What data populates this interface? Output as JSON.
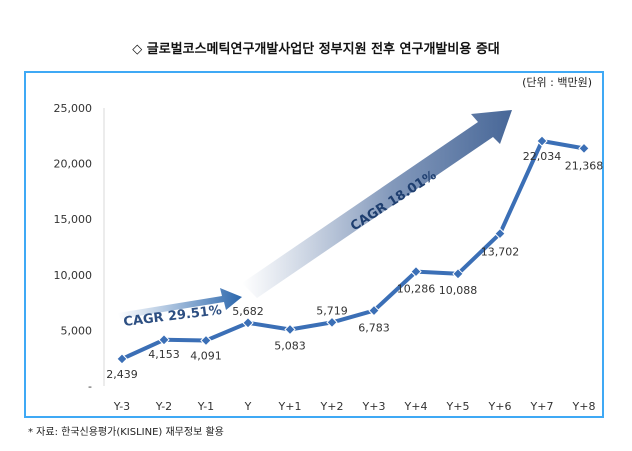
{
  "title": "◇ 글로벌코스메틱연구개발사업단 정부지원 전후 연구개발비용 증대",
  "source": "* 자료: 한국신용평가(KISLINE) 재무정보 활용",
  "chart_data": {
    "type": "line",
    "unit_label": "(단위 : 백만원)",
    "categories": [
      "Y-3",
      "Y-2",
      "Y-1",
      "Y",
      "Y+1",
      "Y+2",
      "Y+3",
      "Y+4",
      "Y+5",
      "Y+6",
      "Y+7",
      "Y+8"
    ],
    "values": [
      2439,
      4153,
      4091,
      5682,
      5083,
      5719,
      6783,
      10286,
      10088,
      13702,
      22034,
      21368
    ],
    "data_labels": [
      "2,439",
      "4,153",
      "4,091",
      "5,682",
      "5,083",
      "5,719",
      "6,783",
      "10,286",
      "10,088",
      "13,702",
      "22,034",
      "21,368"
    ],
    "y_ticks": [
      "-",
      "5,000",
      "10,000",
      "15,000",
      "20,000",
      "25,000"
    ],
    "ylim": [
      0,
      25000
    ],
    "line_color": "#3b6fb6",
    "annotations": [
      {
        "text": "CAGR 29.51%"
      },
      {
        "text": "CAGR 18.01%"
      }
    ]
  }
}
